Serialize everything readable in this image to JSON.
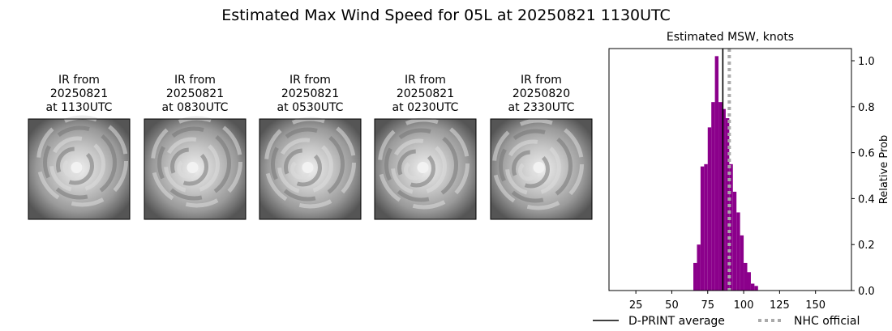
{
  "title": "Estimated Max Wind Speed for 05L at 20250821 1130UTC",
  "panels": [
    {
      "lines": [
        "IR from",
        "20250821",
        "at 1130UTC"
      ]
    },
    {
      "lines": [
        "IR from",
        "20250821",
        "at 0830UTC"
      ]
    },
    {
      "lines": [
        "IR from",
        "20250821",
        "at 0530UTC"
      ]
    },
    {
      "lines": [
        "IR from",
        "20250821",
        "at 0230UTC"
      ]
    },
    {
      "lines": [
        "IR from",
        "20250820",
        "at 2330UTC"
      ]
    }
  ],
  "chart_data": {
    "type": "histogram",
    "title": "Estimated MSW, knots",
    "y_label": "Relative Prob",
    "color": "#8b008b",
    "bins": [
      65,
      67.5,
      70,
      72.5,
      75,
      77.5,
      80,
      82.5,
      85,
      87.5,
      90,
      92.5,
      95,
      97.5,
      100,
      102.5,
      105,
      107.5,
      110
    ],
    "values": [
      0.12,
      0.2,
      0.54,
      0.55,
      0.71,
      0.82,
      1.02,
      0.82,
      0.79,
      0.75,
      0.55,
      0.43,
      0.34,
      0.24,
      0.12,
      0.08,
      0.03,
      0.02
    ],
    "xlim": [
      6.3,
      175
    ],
    "xticks": [
      25,
      50,
      75,
      100,
      125,
      150
    ],
    "ylim": [
      0,
      1.053
    ],
    "yticks": [
      {
        "value": 0,
        "label": "0.0"
      },
      {
        "value": 0.2,
        "label": "0.2"
      },
      {
        "value": 0.4,
        "label": "0.4"
      },
      {
        "value": 0.6,
        "label": "0.6"
      },
      {
        "value": 0.8,
        "label": "0.8"
      },
      {
        "value": 1.0,
        "label": "1.0"
      }
    ],
    "vlines": [
      {
        "name": "D-PRINT average",
        "value": 85.5,
        "color": "#000000",
        "style": "solid"
      },
      {
        "name": "NHC official",
        "value": 90,
        "color": "#aaaaaa",
        "style": "dotted"
      }
    ]
  }
}
